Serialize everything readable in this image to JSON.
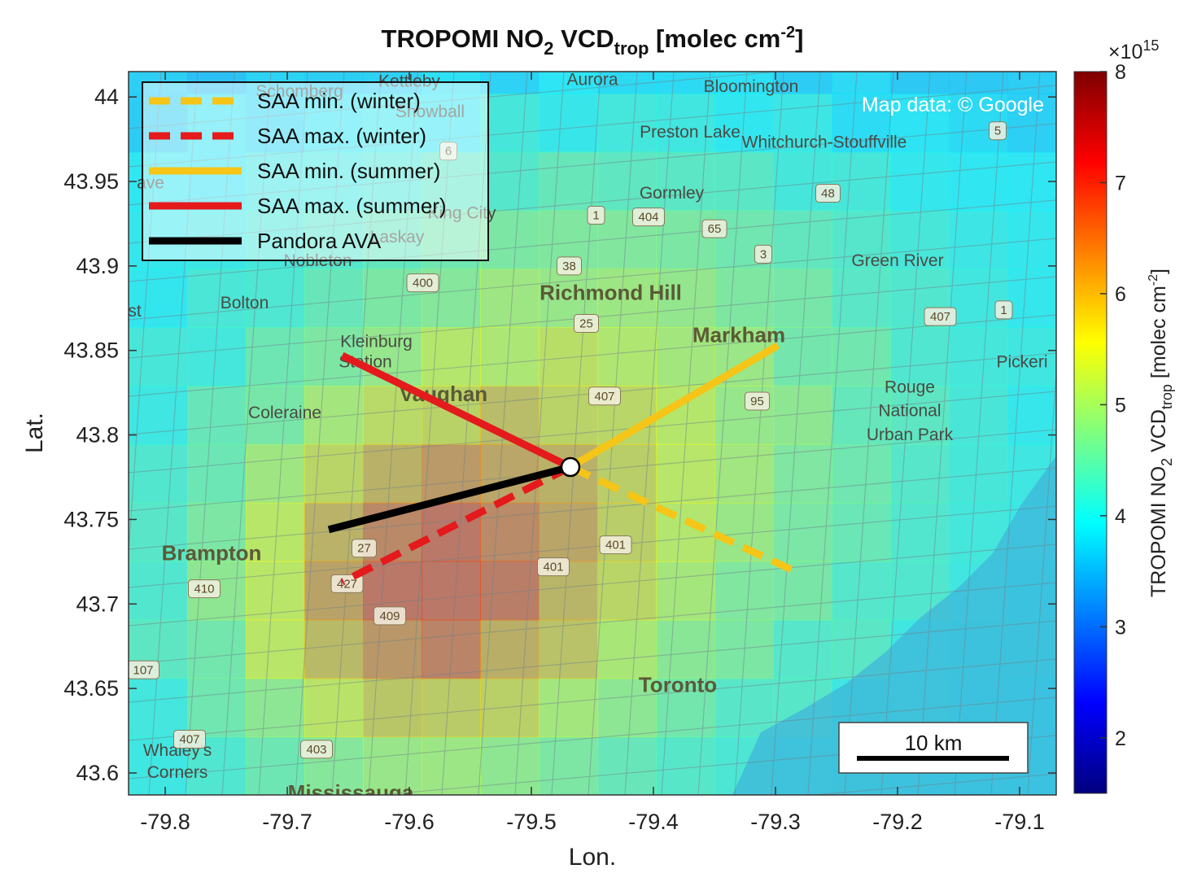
{
  "figure": {
    "title_main": "TROPOMI NO",
    "title_sub": "2",
    "title_mid": " VCD",
    "title_sub2": "trop",
    "title_end": " [molec cm",
    "title_sup": "-2",
    "title_close": "]",
    "xlabel": "Lon.",
    "ylabel": "Lat.",
    "attribution": "Map data: © Google",
    "scale_bar_label": "10 km"
  },
  "axes": {
    "xlim": [
      -79.83,
      -79.07
    ],
    "ylim": [
      43.587,
      44.015
    ],
    "xticks": [
      "-79.8",
      "-79.7",
      "-79.6",
      "-79.5",
      "-79.4",
      "-79.3",
      "-79.2",
      "-79.1"
    ],
    "yticks": [
      "44",
      "43.95",
      "43.9",
      "43.85",
      "43.8",
      "43.75",
      "43.7",
      "43.65",
      "43.6"
    ],
    "xtick_values": [
      -79.8,
      -79.7,
      -79.6,
      -79.5,
      -79.4,
      -79.3,
      -79.2,
      -79.1
    ],
    "ytick_values": [
      44.0,
      43.95,
      43.9,
      43.85,
      43.8,
      43.75,
      43.7,
      43.65,
      43.6
    ]
  },
  "colorbar": {
    "label_main": "TROPOMI NO",
    "label_sub": "2",
    "label_mid": " VCD",
    "label_sub2": "trop",
    "label_end": " [molec cm",
    "label_sup": "-2",
    "label_close": "]",
    "exponent_base": "×10",
    "exponent_power": "15",
    "range": [
      1.5,
      8
    ],
    "ticks": [
      "2",
      "3",
      "4",
      "5",
      "6",
      "7",
      "8"
    ],
    "tick_values": [
      2,
      3,
      4,
      5,
      6,
      7,
      8
    ],
    "colormap": "jet"
  },
  "legend": {
    "placement": "top-left",
    "entries": [
      {
        "label": "SAA min. (winter)",
        "color": "#f5c518",
        "style": "dashed"
      },
      {
        "label": "SAA max. (winter)",
        "color": "#e41a1c",
        "style": "dashed"
      },
      {
        "label": "SAA min. (summer)",
        "color": "#f5c518",
        "style": "solid"
      },
      {
        "label": "SAA max. (summer)",
        "color": "#e41a1c",
        "style": "solid"
      },
      {
        "label": "Pandora AVA",
        "color": "#000000",
        "style": "solid"
      }
    ]
  },
  "chart_data": {
    "type": "scatter",
    "site": {
      "name": "Pandora AVA",
      "lon": -79.468,
      "lat": 43.781
    },
    "series": [
      {
        "name": "SAA min. (winter)",
        "color": "#f5c518",
        "style": "dashed",
        "lon": [
          -79.468,
          -79.283
        ],
        "lat": [
          43.781,
          43.719
        ]
      },
      {
        "name": "SAA max. (winter)",
        "color": "#e41a1c",
        "style": "dashed",
        "lon": [
          -79.468,
          -79.655
        ],
        "lat": [
          43.781,
          43.713
        ]
      },
      {
        "name": "SAA min. (summer)",
        "color": "#f5c518",
        "style": "solid",
        "lon": [
          -79.468,
          -79.298
        ],
        "lat": [
          43.781,
          43.853
        ]
      },
      {
        "name": "SAA max. (summer)",
        "color": "#e41a1c",
        "style": "solid",
        "lon": [
          -79.468,
          -79.655
        ],
        "lat": [
          43.781,
          43.847
        ]
      },
      {
        "name": "Pandora AVA",
        "color": "#000000",
        "style": "solid",
        "lon": [
          -79.468,
          -79.666
        ],
        "lat": [
          43.781,
          43.744
        ]
      }
    ],
    "xlabel": "Lon.",
    "ylabel": "Lat.",
    "grid": false
  },
  "map_labels": {
    "towns": [
      {
        "name": "Aurora",
        "lon": -79.45,
        "lat": 44.007
      },
      {
        "name": "Bloomington",
        "lon": -79.32,
        "lat": 44.003
      },
      {
        "name": "Snowball",
        "lon": -79.583,
        "lat": 43.988
      },
      {
        "name": "Schomberg",
        "lon": -79.69,
        "lat": 44.0
      },
      {
        "name": "Kettleby",
        "lon": -79.6,
        "lat": 44.006
      },
      {
        "name": "Preston Lake",
        "lon": -79.37,
        "lat": 43.976
      },
      {
        "name": "Whitchurch-Stouffville",
        "lon": -79.26,
        "lat": 43.97
      },
      {
        "name": "Gormley",
        "lon": -79.385,
        "lat": 43.94
      },
      {
        "name": "King City",
        "lon": -79.557,
        "lat": 43.928
      },
      {
        "name": "Laskay",
        "lon": -79.61,
        "lat": 43.914
      },
      {
        "name": "Nobleton",
        "lon": -79.675,
        "lat": 43.9
      },
      {
        "name": "Green River",
        "lon": -79.2,
        "lat": 43.9
      },
      {
        "name": "Bolton",
        "lon": -79.735,
        "lat": 43.875
      },
      {
        "name": "Kleinburg",
        "lon": -79.627,
        "lat": 43.852
      },
      {
        "name": "Station",
        "lon": -79.636,
        "lat": 43.84
      },
      {
        "name": "Coleraine",
        "lon": -79.702,
        "lat": 43.81
      },
      {
        "name": "Pickeri",
        "lon": -79.098,
        "lat": 43.84
      },
      {
        "name": "Rouge",
        "lon": -79.19,
        "lat": 43.825
      },
      {
        "name": "National",
        "lon": -79.19,
        "lat": 43.811
      },
      {
        "name": "Urban Park",
        "lon": -79.19,
        "lat": 43.797
      },
      {
        "name": "Whaley's",
        "lon": -79.79,
        "lat": 43.61
      },
      {
        "name": "Corners",
        "lon": -79.79,
        "lat": 43.597
      },
      {
        "name": "st",
        "lon": -79.825,
        "lat": 43.87
      },
      {
        "name": "ave",
        "lon": -79.812,
        "lat": 43.946
      }
    ],
    "cities": [
      {
        "name": "Richmond Hill",
        "lon": -79.435,
        "lat": 43.88
      },
      {
        "name": "Markham",
        "lon": -79.33,
        "lat": 43.855
      },
      {
        "name": "Vaughan",
        "lon": -79.572,
        "lat": 43.82
      },
      {
        "name": "Brampton",
        "lon": -79.762,
        "lat": 43.726
      },
      {
        "name": "Toronto",
        "lon": -79.38,
        "lat": 43.648
      },
      {
        "name": "Mississauga",
        "lon": -79.648,
        "lat": 43.584
      }
    ],
    "highways": [
      {
        "name": "5",
        "lon": -79.118,
        "lat": 43.98
      },
      {
        "name": "6",
        "lon": -79.568,
        "lat": 43.968
      },
      {
        "name": "48",
        "lon": -79.257,
        "lat": 43.943
      },
      {
        "name": "1",
        "lon": -79.447,
        "lat": 43.93
      },
      {
        "name": "404",
        "lon": -79.404,
        "lat": 43.929
      },
      {
        "name": "65",
        "lon": -79.35,
        "lat": 43.922
      },
      {
        "name": "3",
        "lon": -79.31,
        "lat": 43.907
      },
      {
        "name": "38",
        "lon": -79.469,
        "lat": 43.9
      },
      {
        "name": "400",
        "lon": -79.589,
        "lat": 43.89
      },
      {
        "name": "407",
        "lon": -79.165,
        "lat": 43.87
      },
      {
        "name": "1",
        "lon": -79.113,
        "lat": 43.874
      },
      {
        "name": "25",
        "lon": -79.455,
        "lat": 43.866
      },
      {
        "name": "407",
        "lon": -79.44,
        "lat": 43.823
      },
      {
        "name": "95",
        "lon": -79.315,
        "lat": 43.82
      },
      {
        "name": "27",
        "lon": -79.637,
        "lat": 43.733
      },
      {
        "name": "401",
        "lon": -79.431,
        "lat": 43.735
      },
      {
        "name": "401",
        "lon": -79.482,
        "lat": 43.722
      },
      {
        "name": "427",
        "lon": -79.651,
        "lat": 43.712
      },
      {
        "name": "409",
        "lon": -79.616,
        "lat": 43.693
      },
      {
        "name": "410",
        "lon": -79.768,
        "lat": 43.709
      },
      {
        "name": "107",
        "lon": -79.818,
        "lat": 43.661
      },
      {
        "name": "407",
        "lon": -79.78,
        "lat": 43.62
      },
      {
        "name": "403",
        "lon": -79.676,
        "lat": 43.614
      }
    ]
  },
  "colors": {
    "lake": "#3fb6d9",
    "background_field": "#64c8e6"
  }
}
